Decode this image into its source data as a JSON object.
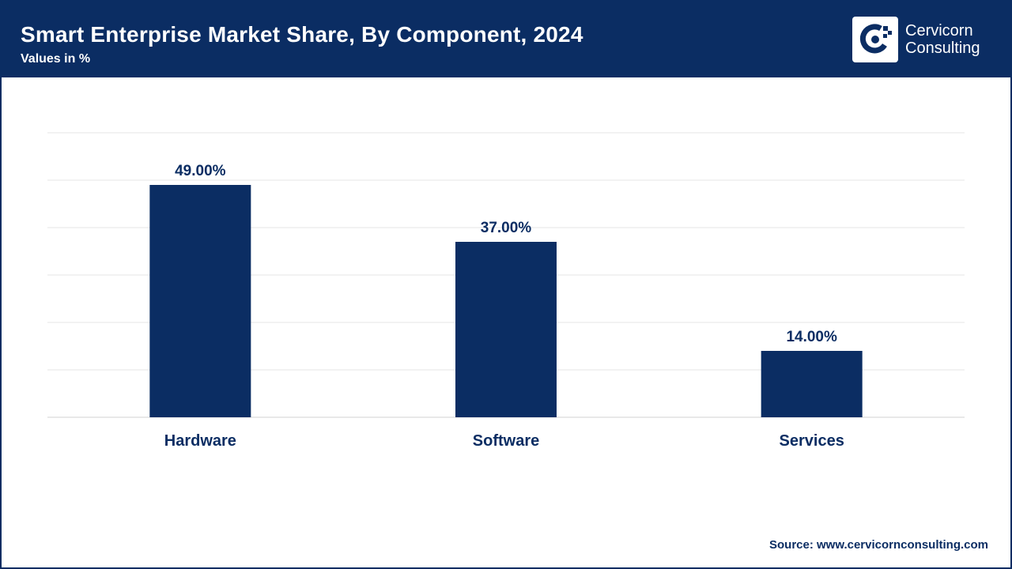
{
  "header": {
    "title": "Smart Enterprise Market Share, By Component, 2024",
    "subtitle": "Values in %",
    "logo_line1": "Cervicorn",
    "logo_line2": "Consulting"
  },
  "footer": {
    "source": "Source: www.cervicornconsulting.com"
  },
  "colors": {
    "brand": "#0b2d63",
    "bar": "#0b2d63",
    "grid": "#e6e6e6",
    "background": "#ffffff"
  },
  "chart_data": {
    "type": "bar",
    "title": "Smart Enterprise Market Share, By Component, 2024",
    "xlabel": "",
    "ylabel": "",
    "categories": [
      "Hardware",
      "Software",
      "Services"
    ],
    "values": [
      49,
      37,
      14
    ],
    "data_labels": [
      "49.00%",
      "37.00%",
      "14.00%"
    ],
    "ylim": [
      0,
      60
    ],
    "ytick_step": 10,
    "grid": true,
    "legend": "none"
  }
}
